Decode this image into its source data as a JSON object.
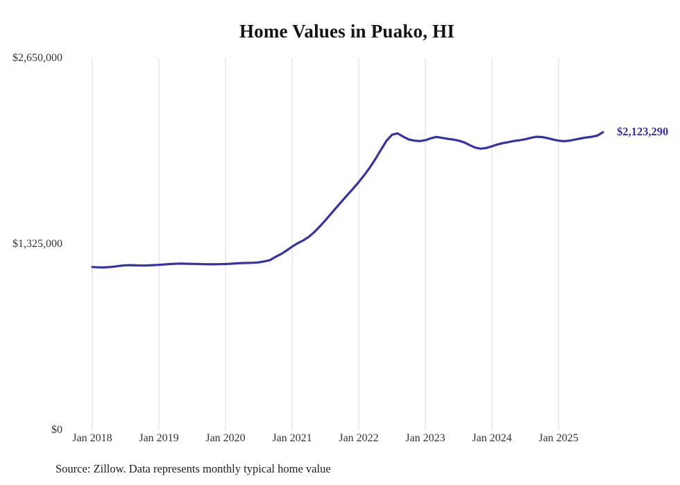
{
  "title": "Home Values in Puako, HI",
  "source_note": "Source: Zillow. Data represents monthly typical home value",
  "colors": {
    "line": "#3531aa",
    "grid": "#d8d8d8",
    "title_text": "#141414",
    "axis_text": "#333333",
    "source_text": "#1c1c1c"
  },
  "chart_data": {
    "type": "line",
    "title": "Home Values in Puako, HI",
    "x_start": "Jan 2018",
    "x_end": "Sep 2025",
    "months_per_point": 1,
    "x_tick_labels": [
      "Jan 2018",
      "Jan 2019",
      "Jan 2020",
      "Jan 2021",
      "Jan 2022",
      "Jan 2023",
      "Jan 2024",
      "Jan 2025"
    ],
    "y_tick_labels": [
      "$0",
      "$1,325,000",
      "$2,650,000"
    ],
    "y_tick_values": [
      0,
      1325000,
      2650000
    ],
    "ylim": [
      0,
      2650000
    ],
    "grid": "vertical-only",
    "legend": "none",
    "final_value": 2123290,
    "final_value_label": "$2,123,290",
    "series": [
      {
        "name": "Monthly typical home value",
        "values": [
          1163000,
          1161000,
          1160000,
          1162000,
          1166000,
          1171000,
          1175000,
          1176000,
          1174000,
          1173000,
          1174000,
          1176000,
          1178000,
          1181000,
          1184000,
          1186000,
          1187000,
          1186000,
          1185000,
          1184000,
          1183000,
          1182000,
          1182000,
          1183000,
          1184000,
          1186000,
          1189000,
          1191000,
          1192000,
          1193000,
          1196000,
          1203000,
          1212000,
          1235000,
          1255000,
          1280000,
          1308000,
          1332000,
          1352000,
          1378000,
          1412000,
          1452000,
          1496000,
          1542000,
          1588000,
          1633000,
          1678000,
          1722000,
          1768000,
          1818000,
          1872000,
          1932000,
          1998000,
          2062000,
          2105000,
          2115000,
          2092000,
          2072000,
          2063000,
          2060000,
          2066000,
          2080000,
          2090000,
          2083000,
          2076000,
          2071000,
          2063000,
          2051000,
          2031000,
          2013000,
          2006000,
          2011000,
          2023000,
          2036000,
          2046000,
          2053000,
          2061000,
          2066000,
          2073000,
          2083000,
          2091000,
          2089000,
          2081000,
          2071000,
          2063000,
          2059000,
          2063000,
          2071000,
          2079000,
          2086000,
          2091000,
          2099000,
          2123290
        ]
      }
    ]
  }
}
